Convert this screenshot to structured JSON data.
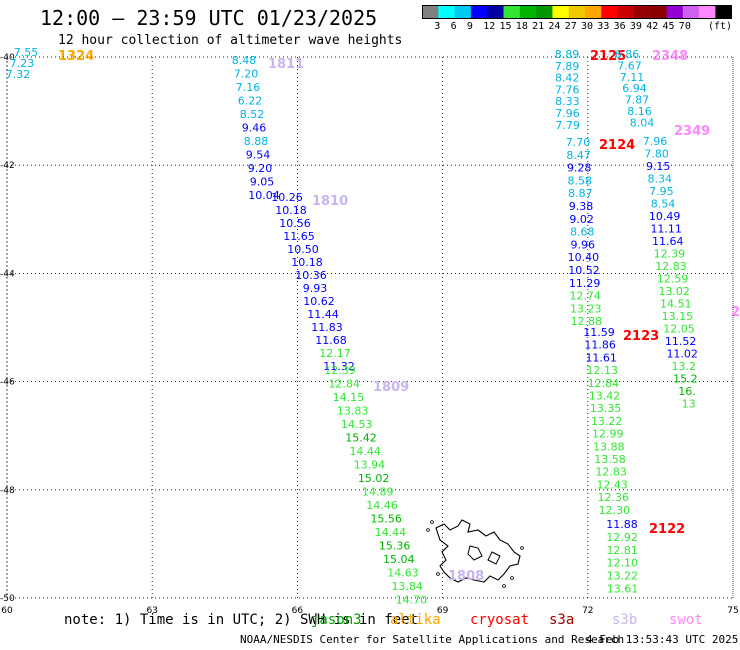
{
  "header": {
    "title": "12:00 – 23:59 UTC 01/23/2025",
    "subtitle": "12 hour collection of altimeter wave heights"
  },
  "scale": {
    "colors": [
      "#808080",
      "#00ffff",
      "#00c8f0",
      "#0000ff",
      "#0000a0",
      "#32e632",
      "#00b400",
      "#009600",
      "#ffff00",
      "#f0c800",
      "#ffa500",
      "#ff0000",
      "#c80000",
      "#960000",
      "#8b0000",
      "#9400d3",
      "#d060f0",
      "#ff88ff",
      "#000000"
    ],
    "labels": [
      "3",
      "6",
      "9",
      "12",
      "15",
      "18",
      "21",
      "24",
      "27",
      "30",
      "33",
      "36",
      "39",
      "42",
      "45",
      "70",
      "(ft)"
    ]
  },
  "map": {
    "lat_labels": [
      "-40",
      "-42",
      "-44",
      "-46",
      "-48",
      "-50"
    ],
    "lon_labels": [
      "60",
      "63",
      "66",
      "69",
      "72",
      "75"
    ]
  },
  "tracks": [
    {
      "label": "1324",
      "label_color": "#ffa500",
      "points": [
        {
          "v": "7.55",
          "c": "#00b4e6"
        },
        {
          "v": "7.23",
          "c": "#00b4e6"
        },
        {
          "v": "7.32",
          "c": "#00b4e6"
        }
      ]
    },
    {
      "label": "1811",
      "label_color": "#c8b4f0",
      "points": [
        {
          "v": "8.48",
          "c": "#00b4e6"
        },
        {
          "v": "7.20",
          "c": "#00b4e6"
        },
        {
          "v": "7.16",
          "c": "#00b4e6"
        },
        {
          "v": "6.22",
          "c": "#00b4e6"
        },
        {
          "v": "8.52",
          "c": "#00b4e6"
        },
        {
          "v": "9.46",
          "c": "#0000ff"
        },
        {
          "v": "8.88",
          "c": "#00b4e6"
        },
        {
          "v": "9.54",
          "c": "#0000ff"
        },
        {
          "v": "9.20",
          "c": "#0000ff"
        },
        {
          "v": "9.05",
          "c": "#0000ff"
        },
        {
          "v": "10.04",
          "c": "#0000ff"
        }
      ]
    },
    {
      "label": "1810",
      "label_color": "#c8b4f0",
      "points": [
        {
          "v": "10.26",
          "c": "#0000ff"
        },
        {
          "v": "10.18",
          "c": "#0000ff"
        },
        {
          "v": "10.56",
          "c": "#0000ff"
        },
        {
          "v": "11.65",
          "c": "#0000ff"
        },
        {
          "v": "10.50",
          "c": "#0000ff"
        },
        {
          "v": "10.18",
          "c": "#0000ff"
        },
        {
          "v": "10.36",
          "c": "#0000ff"
        },
        {
          "v": "9.93",
          "c": "#0000ff"
        },
        {
          "v": "10.62",
          "c": "#0000ff"
        },
        {
          "v": "11.44",
          "c": "#0000ff"
        },
        {
          "v": "11.83",
          "c": "#0000ff"
        },
        {
          "v": "11.68",
          "c": "#0000ff"
        },
        {
          "v": "12.17",
          "c": "#32e632"
        },
        {
          "v": "11.32",
          "c": "#0000ff"
        }
      ]
    },
    {
      "label": "1809",
      "label_color": "#c8b4f0",
      "points": [
        {
          "v": "12.39",
          "c": "#32e632"
        },
        {
          "v": "12.84",
          "c": "#32e632"
        },
        {
          "v": "14.15",
          "c": "#32e632"
        },
        {
          "v": "13.83",
          "c": "#32e632"
        },
        {
          "v": "14.53",
          "c": "#32e632"
        },
        {
          "v": "15.42",
          "c": "#00b400"
        },
        {
          "v": "14.44",
          "c": "#32e632"
        },
        {
          "v": "13.94",
          "c": "#32e632"
        },
        {
          "v": "15.02",
          "c": "#00b400"
        },
        {
          "v": "14.89",
          "c": "#32e632"
        },
        {
          "v": "14.46",
          "c": "#32e632"
        },
        {
          "v": "15.56",
          "c": "#00b400"
        },
        {
          "v": "14.44",
          "c": "#32e632"
        },
        {
          "v": "15.36",
          "c": "#00b400"
        },
        {
          "v": "15.04",
          "c": "#00b400"
        },
        {
          "v": "14.63",
          "c": "#32e632"
        },
        {
          "v": "13.84",
          "c": "#32e632"
        },
        {
          "v": "14.70",
          "c": "#32e632"
        }
      ]
    },
    {
      "label": "1808",
      "label_color": "#c8b4f0",
      "points": []
    },
    {
      "label": "2125",
      "label_color": "#ff0000",
      "points": [
        {
          "v": "8.89",
          "c": "#00b4e6"
        },
        {
          "v": "7.89",
          "c": "#00b4e6"
        },
        {
          "v": "8.42",
          "c": "#00b4e6"
        },
        {
          "v": "7.76",
          "c": "#00b4e6"
        },
        {
          "v": "8.33",
          "c": "#00b4e6"
        },
        {
          "v": "7.96",
          "c": "#00b4e6"
        },
        {
          "v": "7.79",
          "c": "#00b4e6"
        }
      ]
    },
    {
      "label": "2124",
      "label_color": "#ff0000",
      "points": [
        {
          "v": "7.70",
          "c": "#00b4e6"
        },
        {
          "v": "8.47",
          "c": "#00b4e6"
        },
        {
          "v": "9.28",
          "c": "#0000ff"
        },
        {
          "v": "8.58",
          "c": "#00b4e6"
        },
        {
          "v": "8.87",
          "c": "#00b4e6"
        },
        {
          "v": "9.38",
          "c": "#0000ff"
        },
        {
          "v": "9.02",
          "c": "#0000ff"
        },
        {
          "v": "8.68",
          "c": "#00b4e6"
        },
        {
          "v": "9.96",
          "c": "#0000ff"
        },
        {
          "v": "10.40",
          "c": "#0000ff"
        },
        {
          "v": "10.52",
          "c": "#0000ff"
        },
        {
          "v": "11.29",
          "c": "#0000ff"
        },
        {
          "v": "12.74",
          "c": "#32e632"
        },
        {
          "v": "13.23",
          "c": "#32e632"
        },
        {
          "v": "12.88",
          "c": "#32e632"
        }
      ]
    },
    {
      "label": "2123",
      "label_color": "#ff0000",
      "points": [
        {
          "v": "11.59",
          "c": "#0000ff"
        },
        {
          "v": "11.86",
          "c": "#0000ff"
        },
        {
          "v": "11.61",
          "c": "#0000ff"
        },
        {
          "v": "12.13",
          "c": "#32e632"
        },
        {
          "v": "12.84",
          "c": "#32e632"
        },
        {
          "v": "13.42",
          "c": "#32e632"
        },
        {
          "v": "13.35",
          "c": "#32e632"
        },
        {
          "v": "13.22",
          "c": "#32e632"
        },
        {
          "v": "12.99",
          "c": "#32e632"
        },
        {
          "v": "13.88",
          "c": "#32e632"
        },
        {
          "v": "13.58",
          "c": "#32e632"
        },
        {
          "v": "12.83",
          "c": "#32e632"
        },
        {
          "v": "12.43",
          "c": "#32e632"
        },
        {
          "v": "12.36",
          "c": "#32e632"
        },
        {
          "v": "12.30",
          "c": "#32e632"
        }
      ]
    },
    {
      "label": "2122",
      "label_color": "#ff0000",
      "points": [
        {
          "v": "11.88",
          "c": "#0000ff"
        },
        {
          "v": "12.92",
          "c": "#32e632"
        },
        {
          "v": "12.81",
          "c": "#32e632"
        },
        {
          "v": "12.10",
          "c": "#32e632"
        },
        {
          "v": "13.22",
          "c": "#32e632"
        },
        {
          "v": "13.61",
          "c": "#32e632"
        }
      ]
    },
    {
      "label": "2348",
      "label_color": "#ff88ff",
      "points": [
        {
          "v": "6.86",
          "c": "#00b4e6"
        },
        {
          "v": "7.67",
          "c": "#00b4e6"
        },
        {
          "v": "7.11",
          "c": "#00b4e6"
        },
        {
          "v": "6.94",
          "c": "#00b4e6"
        },
        {
          "v": "7.87",
          "c": "#00b4e6"
        },
        {
          "v": "8.16",
          "c": "#00b4e6"
        },
        {
          "v": "8.04",
          "c": "#00b4e6"
        }
      ]
    },
    {
      "label": "2349",
      "label_color": "#ff88ff",
      "points": [
        {
          "v": "7.96",
          "c": "#00b4e6"
        },
        {
          "v": "7.80",
          "c": "#00b4e6"
        },
        {
          "v": "9.15",
          "c": "#0000ff"
        },
        {
          "v": "8.34",
          "c": "#00b4e6"
        },
        {
          "v": "7.95",
          "c": "#00b4e6"
        },
        {
          "v": "8.54",
          "c": "#00b4e6"
        },
        {
          "v": "10.49",
          "c": "#0000ff"
        },
        {
          "v": "11.11",
          "c": "#0000ff"
        },
        {
          "v": "11.64",
          "c": "#0000ff"
        },
        {
          "v": "12.39",
          "c": "#32e632"
        },
        {
          "v": "12.83",
          "c": "#32e632"
        },
        {
          "v": "12.59",
          "c": "#32e632"
        },
        {
          "v": "13.02",
          "c": "#32e632"
        },
        {
          "v": "14.51",
          "c": "#32e632"
        },
        {
          "v": "13.15",
          "c": "#32e632"
        },
        {
          "v": "12.05",
          "c": "#32e632"
        },
        {
          "v": "11.52",
          "c": "#0000ff"
        },
        {
          "v": "11.02",
          "c": "#0000ff"
        },
        {
          "v": "13.2",
          "c": "#32e632"
        },
        {
          "v": "15.2",
          "c": "#00b400"
        },
        {
          "v": "16.",
          "c": "#00b400"
        },
        {
          "v": "13",
          "c": "#32e632"
        }
      ]
    },
    {
      "label": "2",
      "label_color": "#ff88ff",
      "points": []
    }
  ],
  "footer": {
    "note": "note: 1) Time is in UTC; 2) SWH is in feet",
    "satellites": [
      {
        "name": "jason3",
        "color": "#00a000"
      },
      {
        "name": "altika",
        "color": "#ffa500"
      },
      {
        "name": "cryosat",
        "color": "#ff0000"
      },
      {
        "name": "s3a",
        "color": "#a00000"
      },
      {
        "name": "s3b",
        "color": "#c8b4f0"
      },
      {
        "name": "swot",
        "color": "#ff88ff"
      }
    ],
    "credit": "NOAA/NESDIS Center for Satellite Applications and Research",
    "timestamp": "4 Feb 13:53:43 UTC 2025"
  }
}
